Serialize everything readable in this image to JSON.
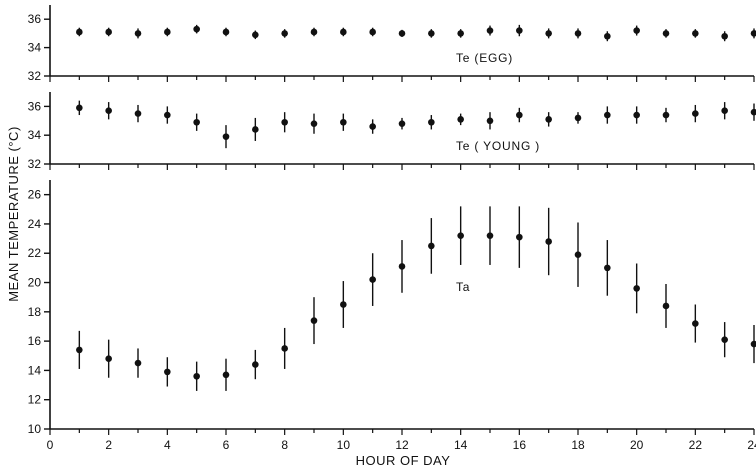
{
  "chart_data": {
    "type": "scatter",
    "x_label": "HOUR OF DAY",
    "y_label": "MEAN TEMPERATURE (°C)",
    "x_ticks": [
      "0",
      "2",
      "4",
      "6",
      "8",
      "10",
      "12",
      "14",
      "16",
      "18",
      "20",
      "22",
      "24"
    ],
    "xlim": [
      0,
      24
    ],
    "color": "#111111",
    "panels": [
      {
        "name": "Te (EGG)",
        "ylim": [
          32,
          37
        ],
        "y_ticks": [
          "32",
          "34",
          "36"
        ],
        "label": "Te (EGG)",
        "x": [
          1,
          2,
          3,
          4,
          5,
          6,
          7,
          8,
          9,
          10,
          11,
          12,
          13,
          14,
          15,
          16,
          17,
          18,
          19,
          20,
          21,
          22,
          23,
          24
        ],
        "y": [
          35.1,
          35.1,
          35.0,
          35.1,
          35.3,
          35.1,
          34.9,
          35.0,
          35.1,
          35.1,
          35.1,
          35.0,
          35.0,
          35.0,
          35.2,
          35.2,
          35.0,
          35.0,
          34.8,
          35.2,
          35.0,
          35.0,
          34.8,
          35.0
        ],
        "err": [
          0.3,
          0.3,
          0.35,
          0.3,
          0.3,
          0.3,
          0.3,
          0.3,
          0.3,
          0.3,
          0.3,
          0.25,
          0.3,
          0.3,
          0.35,
          0.4,
          0.35,
          0.35,
          0.35,
          0.35,
          0.3,
          0.3,
          0.35,
          0.35
        ]
      },
      {
        "name": "Te (YOUNG)",
        "ylim": [
          32,
          37
        ],
        "y_ticks": [
          "32",
          "34",
          "36"
        ],
        "label": "Te ( YOUNG )",
        "x": [
          1,
          2,
          3,
          4,
          5,
          6,
          7,
          8,
          9,
          10,
          11,
          12,
          13,
          14,
          15,
          16,
          17,
          18,
          19,
          20,
          21,
          22,
          23,
          24
        ],
        "y": [
          35.9,
          35.7,
          35.5,
          35.4,
          34.9,
          33.9,
          34.4,
          34.9,
          34.8,
          34.9,
          34.6,
          34.8,
          34.9,
          35.1,
          35.0,
          35.4,
          35.1,
          35.2,
          35.4,
          35.4,
          35.4,
          35.5,
          35.7,
          35.6
        ],
        "err": [
          0.5,
          0.6,
          0.6,
          0.6,
          0.6,
          0.8,
          0.8,
          0.7,
          0.7,
          0.6,
          0.5,
          0.4,
          0.5,
          0.4,
          0.6,
          0.5,
          0.5,
          0.4,
          0.6,
          0.6,
          0.5,
          0.6,
          0.6,
          0.6
        ]
      },
      {
        "name": "Ta",
        "ylim": [
          10,
          27
        ],
        "y_ticks": [
          "10",
          "12",
          "14",
          "16",
          "18",
          "20",
          "22",
          "24",
          "26"
        ],
        "label": "Ta",
        "x": [
          1,
          2,
          3,
          4,
          5,
          6,
          7,
          8,
          9,
          10,
          11,
          12,
          13,
          14,
          15,
          16,
          17,
          18,
          19,
          20,
          21,
          22,
          23,
          24
        ],
        "y": [
          15.4,
          14.8,
          14.5,
          13.9,
          13.6,
          13.7,
          14.4,
          15.5,
          17.4,
          18.5,
          20.2,
          21.1,
          22.5,
          23.2,
          23.2,
          23.1,
          22.8,
          21.9,
          21.0,
          19.6,
          18.4,
          17.2,
          16.1,
          15.8
        ],
        "err": [
          1.3,
          1.3,
          1.0,
          1.0,
          1.0,
          1.1,
          1.0,
          1.4,
          1.6,
          1.6,
          1.8,
          1.8,
          1.9,
          2.0,
          2.0,
          2.1,
          2.3,
          2.2,
          1.9,
          1.7,
          1.5,
          1.3,
          1.2,
          1.3
        ]
      }
    ]
  }
}
